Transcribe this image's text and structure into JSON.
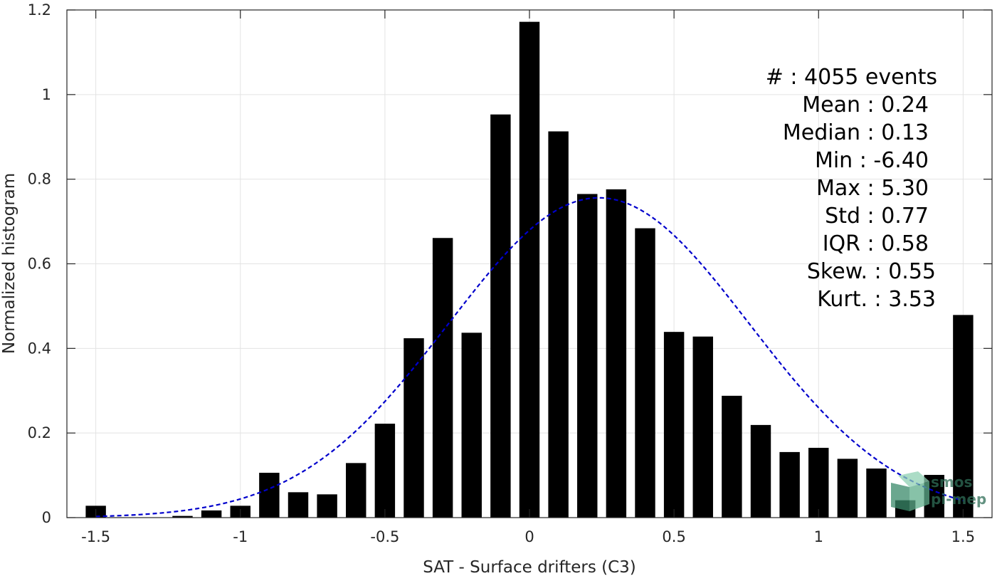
{
  "colors": {
    "bars": "#000000",
    "fit_curve": "#0000cc",
    "grid": "#e3e3e3",
    "axis": "#262626",
    "logo": "#3a8a6a"
  },
  "chart_data": {
    "type": "bar",
    "xlabel": "SAT - Surface drifters (C3)",
    "ylabel": "Normalized histogram",
    "xlim": [
      -1.6,
      1.6
    ],
    "ylim": [
      0,
      1.2
    ],
    "xticks": [
      -1.5,
      -1,
      -0.5,
      0,
      0.5,
      1,
      1.5
    ],
    "xtick_labels": [
      "-1.5",
      "-1",
      "-0.5",
      "0",
      "0.5",
      "1",
      "1.5"
    ],
    "yticks": [
      0,
      0.2,
      0.4,
      0.6,
      0.8,
      1,
      1.2
    ],
    "ytick_labels": [
      "0",
      "0.2",
      "0.4",
      "0.6",
      "0.8",
      "1",
      "1.2"
    ],
    "grid": true,
    "bar_width": 0.07,
    "x": [
      -1.5,
      -1.4,
      -1.3,
      -1.2,
      -1.1,
      -1.0,
      -0.9,
      -0.8,
      -0.7,
      -0.6,
      -0.5,
      -0.4,
      -0.3,
      -0.2,
      -0.1,
      0.0,
      0.1,
      0.2,
      0.3,
      0.4,
      0.5,
      0.6,
      0.7,
      0.8,
      0.9,
      1.0,
      1.1,
      1.2,
      1.3,
      1.4,
      1.5
    ],
    "values": [
      0.028,
      0.0,
      0.0,
      0.004,
      0.017,
      0.028,
      0.106,
      0.06,
      0.055,
      0.129,
      0.222,
      0.424,
      0.661,
      0.437,
      0.953,
      1.172,
      0.913,
      0.765,
      0.776,
      0.684,
      0.439,
      0.428,
      0.288,
      0.219,
      0.155,
      0.165,
      0.139,
      0.116,
      0.041,
      0.101,
      0.479
    ],
    "fit_curve": {
      "style": "dashed",
      "mean": 0.24,
      "std": 0.52,
      "peak": 0.756,
      "x_range": [
        -1.5,
        1.5
      ]
    },
    "stats": [
      {
        "label": "#  ",
        "value": "4055 events"
      },
      {
        "label": "Mean",
        "value": "0.24"
      },
      {
        "label": "Median",
        "value": "0.13"
      },
      {
        "label": "Min",
        "value": "-6.40"
      },
      {
        "label": "Max",
        "value": "5.30"
      },
      {
        "label": "Std",
        "value": "0.77"
      },
      {
        "label": "IQR",
        "value": "0.58"
      },
      {
        "label": "Skew.",
        "value": "0.55"
      },
      {
        "label": "Kurt.",
        "value": "3.53"
      }
    ]
  },
  "stats_lines": [
    "#  : 4055 events",
    "Mean : 0.24",
    "Median : 0.13",
    "Min : -6.40",
    "Max : 5.30",
    "Std : 0.77",
    "IQR : 0.58",
    "Skew. : 0.55",
    "Kurt. : 3.53"
  ],
  "logo": {
    "line1": "smos",
    "line2": "pi-mep"
  }
}
